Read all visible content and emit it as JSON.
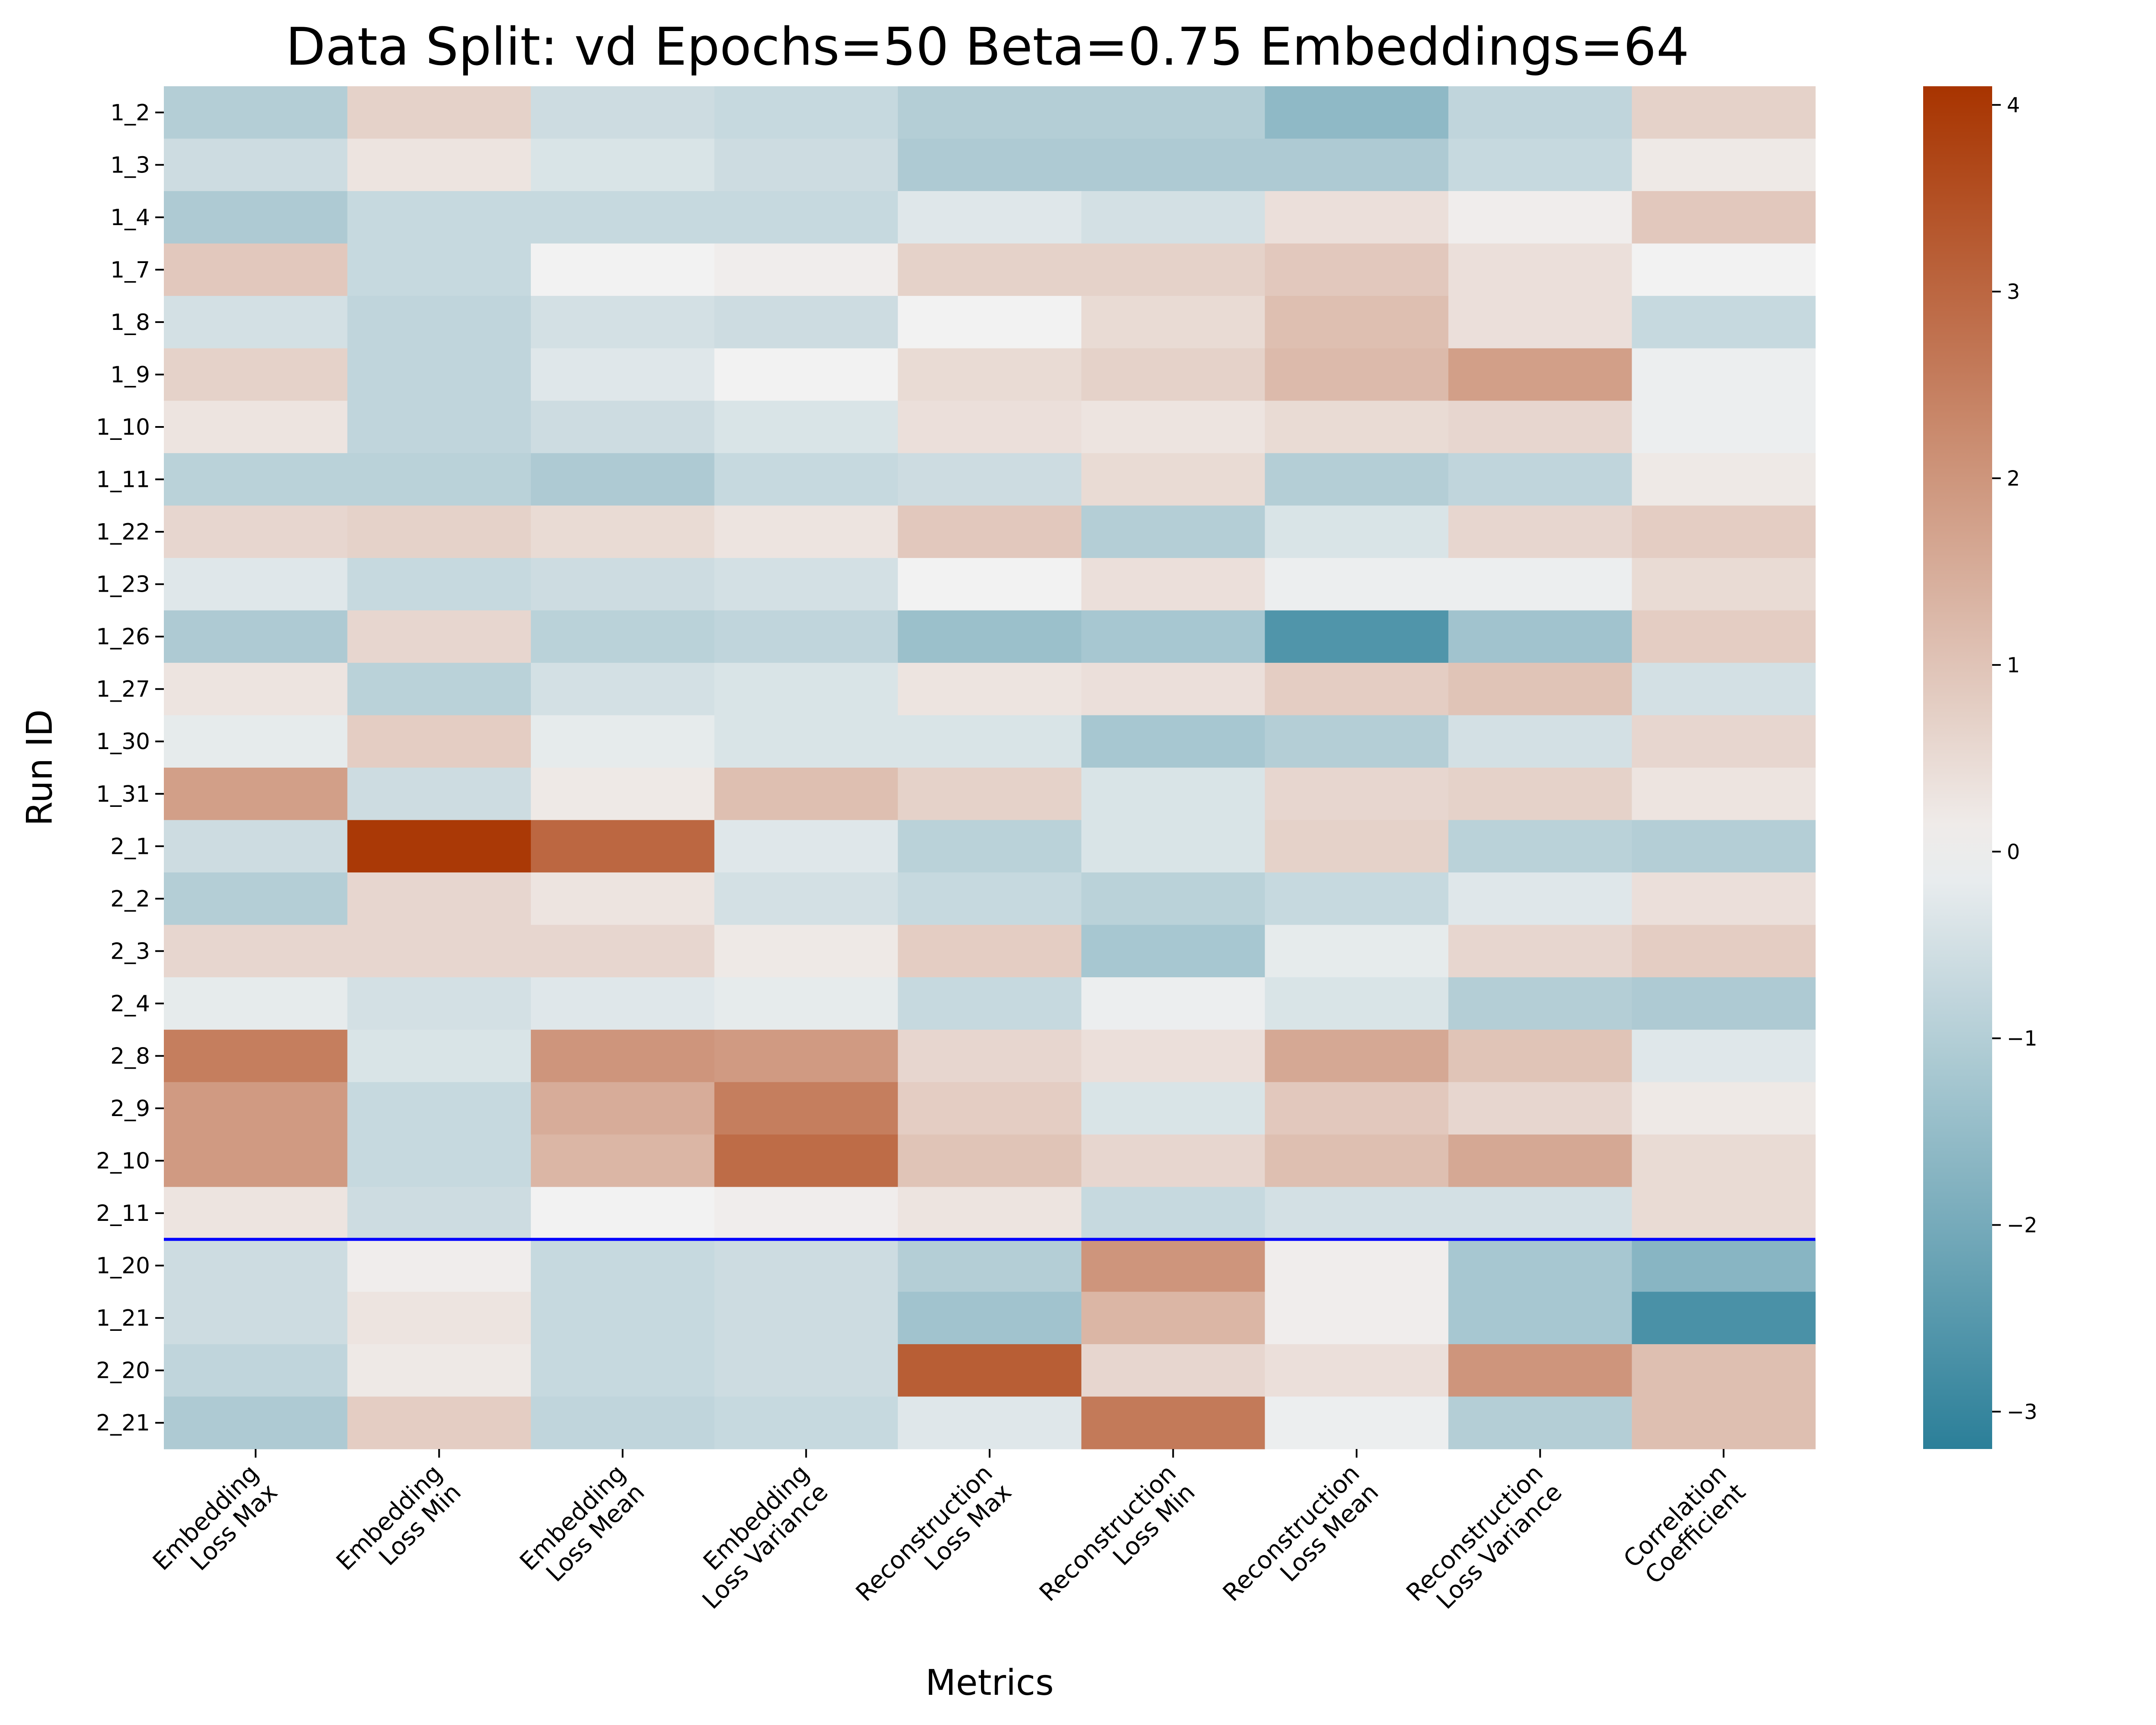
{
  "chart_data": {
    "type": "heatmap",
    "title": "Data Split: vd Epochs=50 Beta=0.75 Embeddings=64",
    "xlabel": "Metrics",
    "ylabel": "Run ID",
    "columns": [
      [
        "Embedding",
        "Loss Max"
      ],
      [
        "Embedding",
        "Loss Min"
      ],
      [
        "Embedding",
        "Loss Mean"
      ],
      [
        "Embedding",
        "Loss Variance"
      ],
      [
        "Reconstruction",
        "Loss Max"
      ],
      [
        "Reconstruction",
        "Loss Min"
      ],
      [
        "Reconstruction",
        "Loss Mean"
      ],
      [
        "Reconstruction",
        "Loss Variance"
      ],
      [
        "Correlation",
        "Coefficient"
      ]
    ],
    "rows": [
      "1_2",
      "1_3",
      "1_4",
      "1_7",
      "1_8",
      "1_9",
      "1_10",
      "1_11",
      "1_22",
      "1_23",
      "1_26",
      "1_27",
      "1_30",
      "1_31",
      "2_1",
      "2_2",
      "2_3",
      "2_4",
      "2_8",
      "2_9",
      "2_10",
      "2_11",
      "1_20",
      "1_21",
      "2_20",
      "2_21"
    ],
    "values": [
      [
        -1.0,
        0.7,
        -0.6,
        -0.7,
        -1.0,
        -1.0,
        -1.6,
        -0.8,
        0.7
      ],
      [
        -0.6,
        0.3,
        -0.4,
        -0.6,
        -1.1,
        -1.1,
        -1.1,
        -0.7,
        0.2
      ],
      [
        -1.1,
        -0.7,
        -0.7,
        -0.7,
        -0.3,
        -0.5,
        0.4,
        0.1,
        0.9
      ],
      [
        0.9,
        -0.7,
        0.0,
        0.1,
        0.7,
        0.7,
        0.9,
        0.4,
        0.0
      ],
      [
        -0.5,
        -0.8,
        -0.5,
        -0.6,
        0.0,
        0.5,
        1.1,
        0.4,
        -0.7
      ],
      [
        0.7,
        -0.8,
        -0.3,
        0.0,
        0.5,
        0.7,
        1.2,
        1.8,
        -0.1
      ],
      [
        0.3,
        -0.8,
        -0.6,
        -0.4,
        0.4,
        0.3,
        0.5,
        0.6,
        -0.1
      ],
      [
        -0.9,
        -0.9,
        -1.1,
        -0.7,
        -0.6,
        0.5,
        -1.0,
        -0.8,
        0.2
      ],
      [
        0.6,
        0.7,
        0.5,
        0.3,
        0.9,
        -1.0,
        -0.4,
        0.6,
        0.8
      ],
      [
        -0.3,
        -0.7,
        -0.6,
        -0.5,
        0.0,
        0.4,
        -0.1,
        -0.1,
        0.5
      ],
      [
        -1.1,
        0.6,
        -0.9,
        -0.8,
        -1.4,
        -1.2,
        -2.6,
        -1.3,
        0.8
      ],
      [
        0.3,
        -0.9,
        -0.5,
        -0.4,
        0.3,
        0.4,
        0.8,
        1.0,
        -0.5
      ],
      [
        -0.2,
        0.8,
        -0.2,
        -0.4,
        -0.4,
        -1.2,
        -1.0,
        -0.5,
        0.6
      ],
      [
        1.8,
        -0.6,
        0.2,
        1.1,
        0.7,
        -0.4,
        0.6,
        0.7,
        0.3
      ],
      [
        -0.6,
        4.0,
        3.0,
        -0.3,
        -0.9,
        -0.4,
        0.7,
        -0.9,
        -1.0
      ],
      [
        -1.0,
        0.6,
        0.3,
        -0.5,
        -0.7,
        -0.9,
        -0.7,
        -0.3,
        0.4
      ],
      [
        0.6,
        0.6,
        0.6,
        0.2,
        0.8,
        -1.2,
        -0.2,
        0.6,
        0.8
      ],
      [
        -0.2,
        -0.5,
        -0.3,
        -0.2,
        -0.7,
        -0.1,
        -0.4,
        -1.0,
        -1.1
      ],
      [
        2.5,
        -0.4,
        2.0,
        1.9,
        0.6,
        0.4,
        1.6,
        1.0,
        -0.3
      ],
      [
        1.9,
        -0.7,
        1.5,
        2.5,
        0.8,
        -0.4,
        0.9,
        0.6,
        0.2
      ],
      [
        1.9,
        -0.7,
        1.3,
        2.9,
        1.0,
        0.6,
        1.1,
        1.6,
        0.5
      ],
      [
        0.3,
        -0.6,
        0.0,
        0.1,
        0.3,
        -0.7,
        -0.5,
        -0.5,
        0.5
      ],
      [
        -0.6,
        0.1,
        -0.7,
        -0.6,
        -1.0,
        2.0,
        0.1,
        -1.2,
        -1.7
      ],
      [
        -0.6,
        0.3,
        -0.7,
        -0.6,
        -1.3,
        1.3,
        0.1,
        -1.2,
        -2.7
      ],
      [
        -0.8,
        0.2,
        -0.7,
        -0.6,
        3.2,
        0.6,
        0.4,
        2.0,
        1.1
      ],
      [
        -1.1,
        0.8,
        -0.8,
        -0.7,
        -0.3,
        2.6,
        -0.1,
        -1.0,
        1.1
      ]
    ],
    "separator_after_row": "2_11",
    "separator_color": "#0000ff",
    "vmin": -3.2,
    "vmax": 4.1,
    "colorbar_ticks": [
      4,
      3,
      2,
      1,
      0,
      -1,
      -2,
      -3
    ],
    "colormap": {
      "low": "#2b7f99",
      "mid": "#f2f2f2",
      "high": "#a83400"
    }
  }
}
